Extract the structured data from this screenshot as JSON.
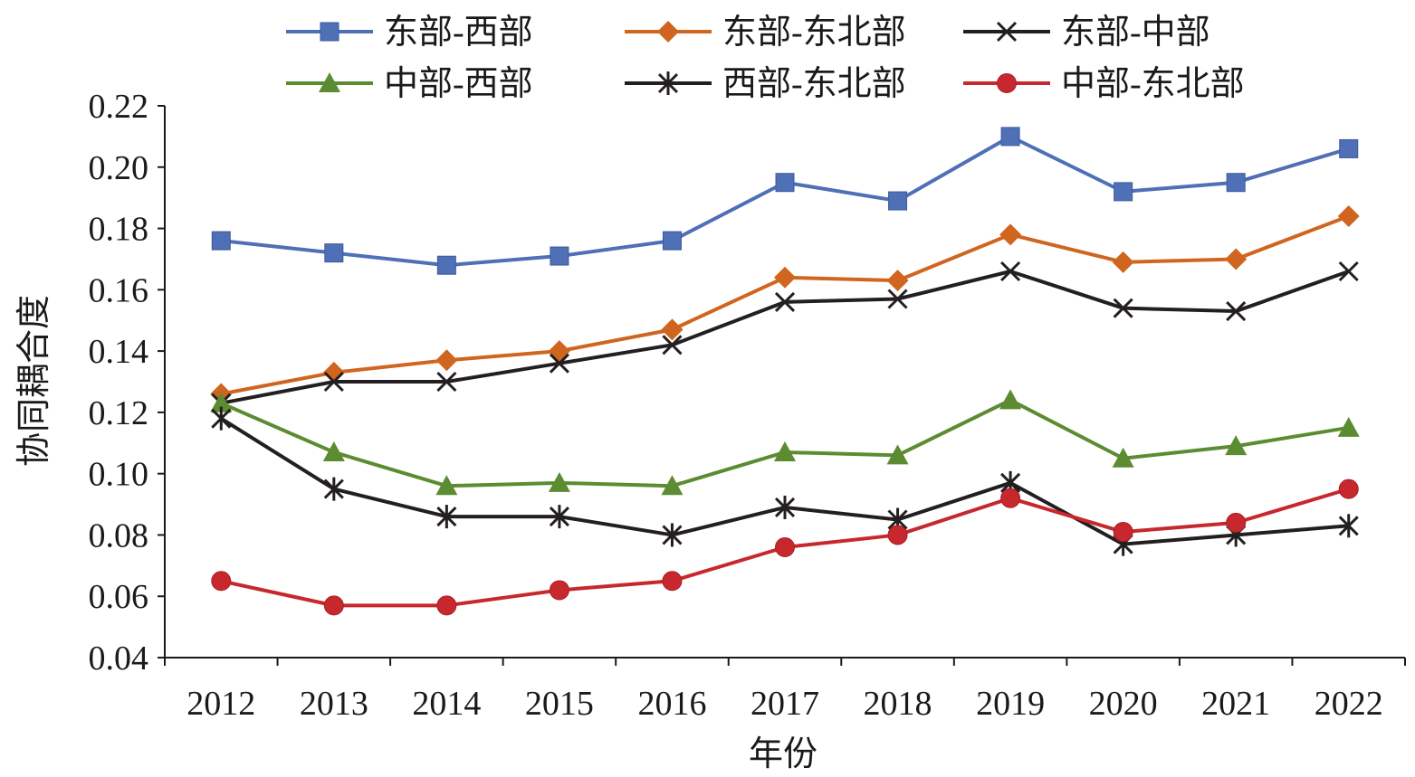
{
  "chart_data": {
    "type": "line",
    "title": "",
    "xlabel": "年份",
    "ylabel": "协同耦合度",
    "ylim": [
      0.04,
      0.22
    ],
    "yticks": [
      "0.04",
      "0.06",
      "0.08",
      "0.10",
      "0.12",
      "0.14",
      "0.16",
      "0.18",
      "0.20",
      "0.22"
    ],
    "categories": [
      "2012",
      "2013",
      "2014",
      "2015",
      "2016",
      "2017",
      "2018",
      "2019",
      "2020",
      "2021",
      "2022"
    ],
    "grid": false,
    "legend_position": "top",
    "series": [
      {
        "name": "东部-西部",
        "marker": "square",
        "color": "#4f6fb6",
        "values": [
          0.176,
          0.172,
          0.168,
          0.171,
          0.176,
          0.195,
          0.189,
          0.21,
          0.192,
          0.195,
          0.206
        ]
      },
      {
        "name": "东部-东北部",
        "marker": "diamond",
        "color": "#d0651f",
        "values": [
          0.126,
          0.133,
          0.137,
          0.14,
          0.147,
          0.164,
          0.163,
          0.178,
          0.169,
          0.17,
          0.184
        ]
      },
      {
        "name": "东部-中部",
        "marker": "x",
        "color": "#231f20",
        "values": [
          0.123,
          0.13,
          0.13,
          0.136,
          0.142,
          0.156,
          0.157,
          0.166,
          0.154,
          0.153,
          0.166
        ]
      },
      {
        "name": "中部-西部",
        "marker": "triangle",
        "color": "#5b8c32",
        "values": [
          0.123,
          0.107,
          0.096,
          0.097,
          0.096,
          0.107,
          0.106,
          0.124,
          0.105,
          0.109,
          0.115
        ]
      },
      {
        "name": "西部-东北部",
        "marker": "star",
        "color": "#231f20",
        "values": [
          0.118,
          0.095,
          0.086,
          0.086,
          0.08,
          0.089,
          0.085,
          0.097,
          0.077,
          0.08,
          0.083
        ]
      },
      {
        "name": "中部-东北部",
        "marker": "circle",
        "color": "#c7282e",
        "values": [
          0.065,
          0.057,
          0.057,
          0.062,
          0.065,
          0.076,
          0.08,
          0.092,
          0.081,
          0.084,
          0.095
        ]
      }
    ]
  }
}
